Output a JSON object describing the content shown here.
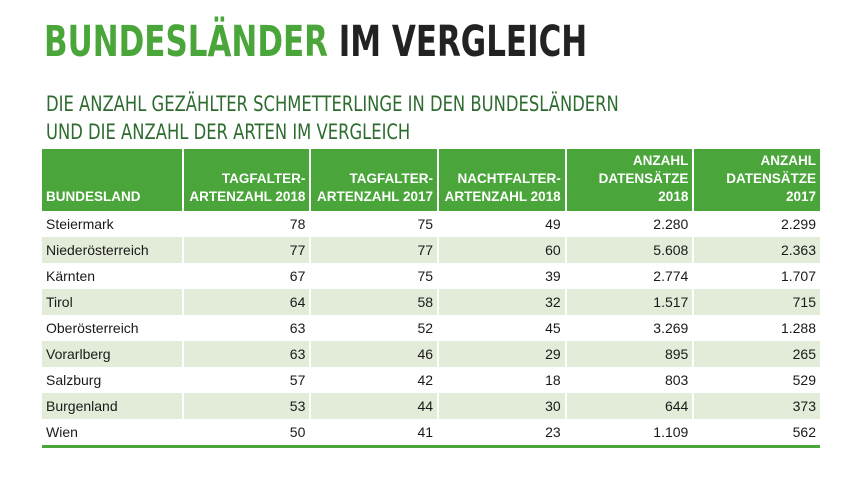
{
  "page": {
    "title_part1": "BUNDESLÄNDER",
    "title_part2": "IM VERGLEICH",
    "subtitle_line1": "DIE ANZAHL GEZÄHLTER SCHMETTERLINGE IN DEN BUNDESLÄNDERN",
    "subtitle_line2": "UND DIE ANZAHL DER ARTEN IM VERGLEICH"
  },
  "colors": {
    "accent_green": "#4aa63a",
    "row_alt": "#e2ecd8",
    "subtitle_green": "#2d6b2f"
  },
  "table": {
    "headers": [
      [
        "BUNDESLAND"
      ],
      [
        "TAGFALTER-",
        "ARTENZAHL 2018"
      ],
      [
        "TAGFALTER-",
        "ARTENZAHL 2017"
      ],
      [
        "NACHTFALTER-",
        "ARTENZAHL 2018"
      ],
      [
        "ANZAHL",
        "DATENSÄTZE",
        "2018"
      ],
      [
        "ANZAHL",
        "DATENSÄTZE",
        "2017"
      ]
    ],
    "rows": [
      [
        "Steiermark",
        "78",
        "75",
        "49",
        "2.280",
        "2.299"
      ],
      [
        "Niederösterreich",
        "77",
        "77",
        "60",
        "5.608",
        "2.363"
      ],
      [
        "Kärnten",
        "67",
        "75",
        "39",
        "2.774",
        "1.707"
      ],
      [
        "Tirol",
        "64",
        "58",
        "32",
        "1.517",
        "715"
      ],
      [
        "Oberösterreich",
        "63",
        "52",
        "45",
        "3.269",
        "1.288"
      ],
      [
        "Vorarlberg",
        "63",
        "46",
        "29",
        "895",
        "265"
      ],
      [
        "Salzburg",
        "57",
        "42",
        "18",
        "803",
        "529"
      ],
      [
        "Burgenland",
        "53",
        "44",
        "30",
        "644",
        "373"
      ],
      [
        "Wien",
        "50",
        "41",
        "23",
        "1.109",
        "562"
      ]
    ]
  }
}
